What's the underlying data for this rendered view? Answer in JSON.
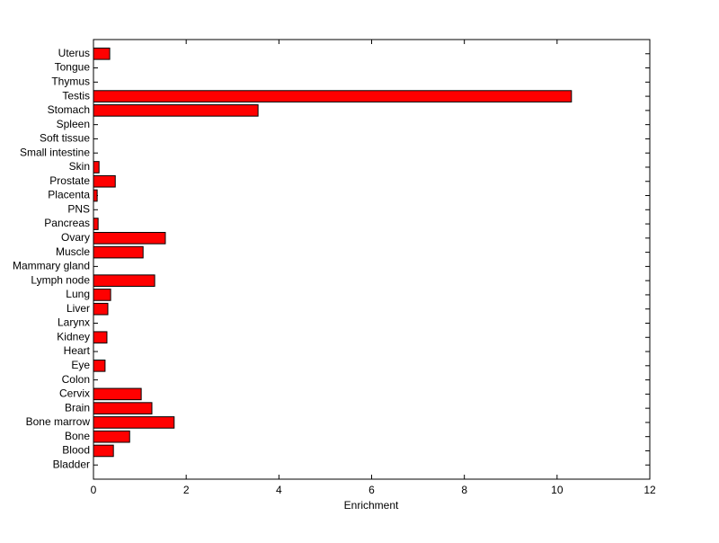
{
  "chart_data": {
    "type": "barh",
    "x_label": "Enrichment",
    "categories": [
      "Bladder",
      "Blood",
      "Bone",
      "Bone marrow",
      "Brain",
      "Cervix",
      "Colon",
      "Eye",
      "Heart",
      "Kidney",
      "Larynx",
      "Liver",
      "Lung",
      "Lymph node",
      "Mammary gland",
      "Muscle",
      "Ovary",
      "Pancreas",
      "PNS",
      "Placenta",
      "Prostate",
      "Skin",
      "Small intestine",
      "Soft tissue",
      "Spleen",
      "Stomach",
      "Testis",
      "Thymus",
      "Tongue",
      "Uterus"
    ],
    "values": [
      0,
      0.43,
      0.78,
      1.74,
      1.26,
      1.03,
      0,
      0.25,
      0,
      0.29,
      0,
      0.31,
      0.37,
      1.32,
      0,
      1.07,
      1.55,
      0.1,
      0,
      0.08,
      0.47,
      0.12,
      0,
      0,
      0,
      3.55,
      10.31,
      0,
      0,
      0.35
    ],
    "color": "#ff0000",
    "xlim": [
      0,
      12
    ],
    "xticks": [
      0,
      2,
      4,
      6,
      8,
      10,
      12
    ]
  }
}
